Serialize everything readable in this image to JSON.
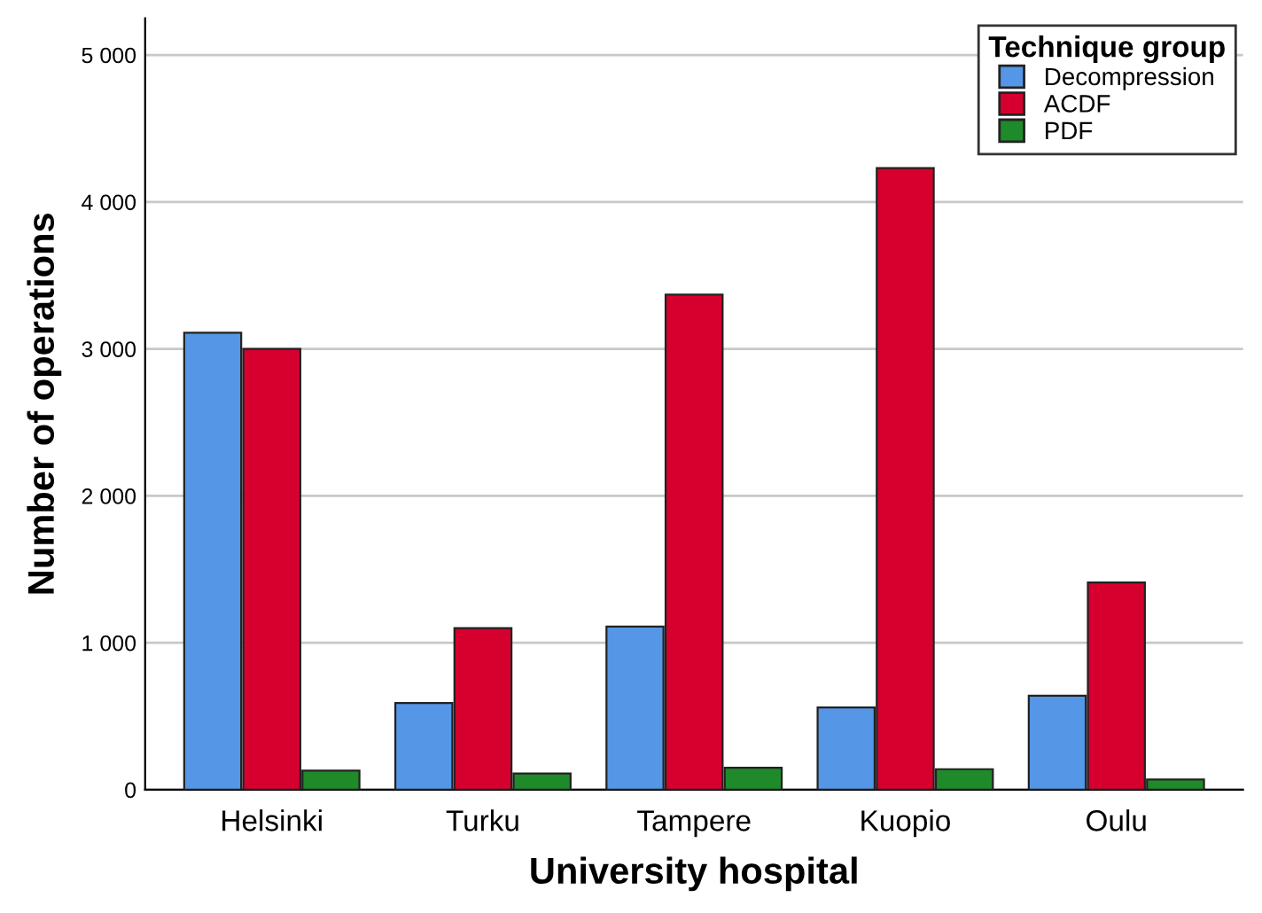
{
  "chart_data": {
    "type": "bar",
    "xlabel": "University hospital",
    "ylabel": "Number of operations",
    "legend_title": "Technique group",
    "categories": [
      "Helsinki",
      "Turku",
      "Tampere",
      "Kuopio",
      "Oulu"
    ],
    "series": [
      {
        "name": "Decompression",
        "color": "#5596e6",
        "values": [
          3110,
          590,
          1110,
          560,
          640
        ]
      },
      {
        "name": "ACDF",
        "color": "#d6002f",
        "values": [
          3000,
          1100,
          3370,
          4230,
          1410
        ]
      },
      {
        "name": "PDF",
        "color": "#1f8a2a",
        "values": [
          130,
          110,
          150,
          140,
          70
        ]
      }
    ],
    "ylim": [
      0,
      5250
    ],
    "yticks": [
      {
        "value": 0,
        "label": "0"
      },
      {
        "value": 1000,
        "label": "1 000"
      },
      {
        "value": 2000,
        "label": "2 000"
      },
      {
        "value": 3000,
        "label": "3 000"
      },
      {
        "value": 4000,
        "label": "4 000"
      },
      {
        "value": 5000,
        "label": "5 000"
      }
    ],
    "grid": "y",
    "legend": "top right"
  }
}
